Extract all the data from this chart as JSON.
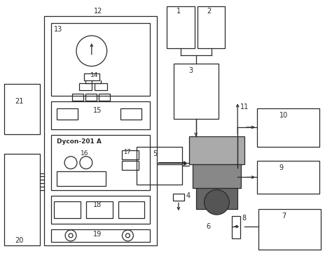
{
  "bg_color": "#ffffff",
  "line_color": "#2a2a2a",
  "figsize": [
    4.74,
    3.69
  ],
  "dpi": 100,
  "lw": 0.9
}
